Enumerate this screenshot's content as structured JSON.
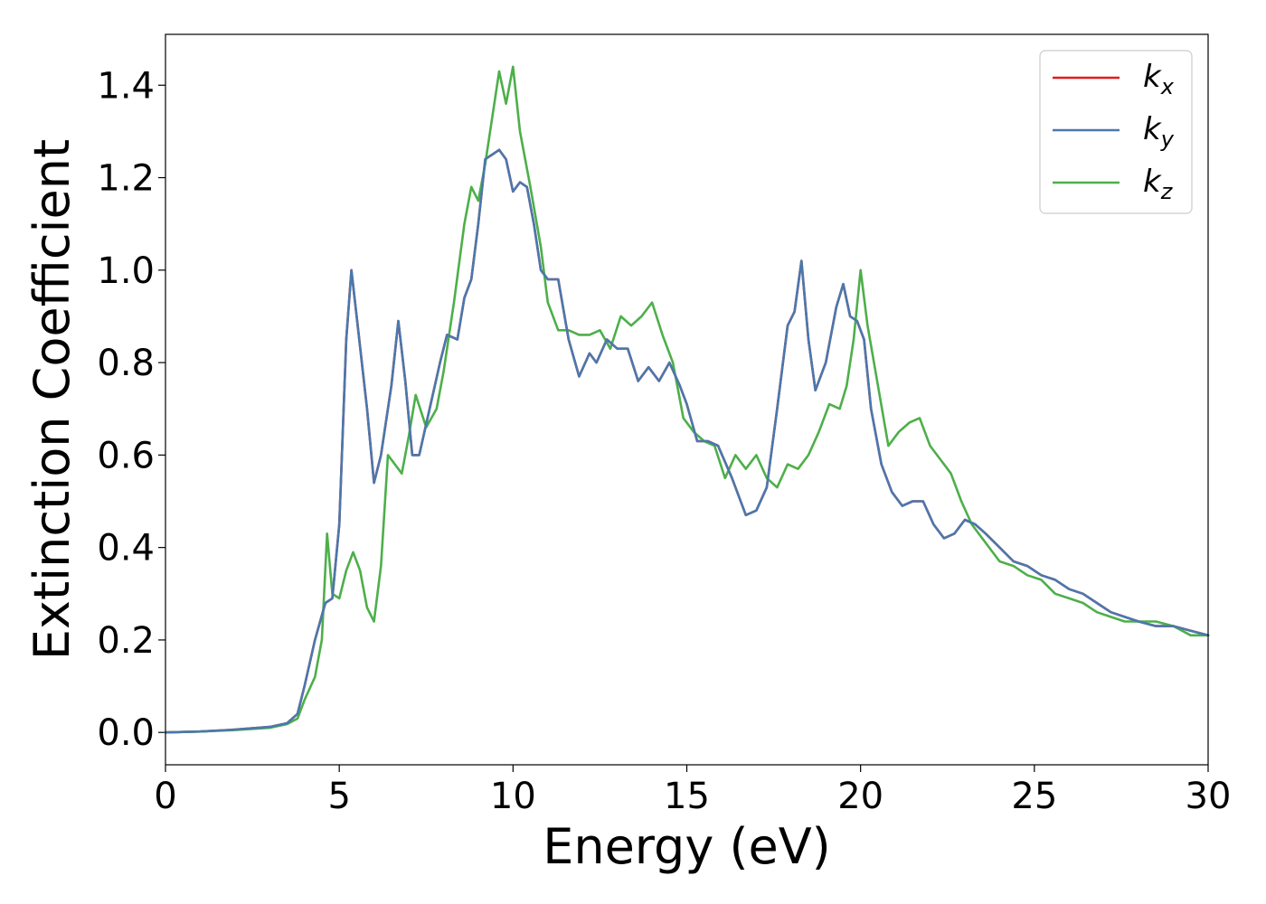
{
  "chart_data": {
    "type": "line",
    "title": "",
    "xlabel": "Energy (eV)",
    "ylabel": "Extinction Coefficient",
    "xlim": [
      0,
      30
    ],
    "ylim": [
      -0.07,
      1.51
    ],
    "xticks": [
      0,
      5,
      10,
      15,
      20,
      25,
      30
    ],
    "xtick_labels": [
      "0",
      "5",
      "10",
      "15",
      "20",
      "25",
      "30"
    ],
    "yticks": [
      0.0,
      0.2,
      0.4,
      0.6,
      0.8,
      1.0,
      1.2,
      1.4
    ],
    "ytick_labels": [
      "0.0",
      "0.2",
      "0.4",
      "0.6",
      "0.8",
      "1.0",
      "1.2",
      "1.4"
    ],
    "grid": false,
    "legend_position": "top-right",
    "series": [
      {
        "name": "k_x",
        "legend_base": "k",
        "legend_sub": "x",
        "color": "#e41a1c",
        "x": [
          0,
          1,
          2,
          3,
          3.5,
          3.8,
          4.0,
          4.3,
          4.6,
          4.8,
          5.0,
          5.2,
          5.35,
          5.5,
          5.8,
          6.0,
          6.2,
          6.5,
          6.7,
          6.9,
          7.1,
          7.3,
          7.6,
          7.9,
          8.1,
          8.4,
          8.6,
          8.8,
          9.0,
          9.2,
          9.4,
          9.6,
          9.8,
          10.0,
          10.2,
          10.4,
          10.6,
          10.8,
          11.0,
          11.3,
          11.6,
          11.9,
          12.2,
          12.4,
          12.7,
          13.0,
          13.3,
          13.6,
          13.9,
          14.2,
          14.5,
          14.8,
          15.0,
          15.3,
          15.6,
          15.9,
          16.3,
          16.7,
          17.0,
          17.3,
          17.6,
          17.9,
          18.1,
          18.3,
          18.5,
          18.7,
          19.0,
          19.3,
          19.5,
          19.7,
          19.9,
          20.1,
          20.3,
          20.6,
          20.9,
          21.2,
          21.5,
          21.8,
          22.1,
          22.4,
          22.7,
          23.0,
          23.3,
          23.6,
          24.0,
          24.4,
          24.8,
          25.2,
          25.6,
          26.0,
          26.4,
          26.8,
          27.2,
          27.6,
          28.0,
          28.5,
          29.0,
          29.5,
          30.0
        ],
        "values": [
          0.0,
          0.002,
          0.006,
          0.012,
          0.02,
          0.04,
          0.1,
          0.2,
          0.28,
          0.29,
          0.45,
          0.85,
          1.0,
          0.9,
          0.7,
          0.54,
          0.6,
          0.75,
          0.89,
          0.76,
          0.6,
          0.6,
          0.7,
          0.8,
          0.86,
          0.85,
          0.94,
          0.98,
          1.1,
          1.24,
          1.25,
          1.26,
          1.24,
          1.17,
          1.19,
          1.18,
          1.1,
          1.0,
          0.98,
          0.98,
          0.85,
          0.77,
          0.82,
          0.8,
          0.85,
          0.83,
          0.83,
          0.76,
          0.79,
          0.76,
          0.8,
          0.75,
          0.71,
          0.63,
          0.63,
          0.62,
          0.55,
          0.47,
          0.48,
          0.53,
          0.7,
          0.88,
          0.91,
          1.02,
          0.85,
          0.74,
          0.8,
          0.92,
          0.97,
          0.9,
          0.89,
          0.85,
          0.7,
          0.58,
          0.52,
          0.49,
          0.5,
          0.5,
          0.45,
          0.42,
          0.43,
          0.46,
          0.45,
          0.43,
          0.4,
          0.37,
          0.36,
          0.34,
          0.33,
          0.31,
          0.3,
          0.28,
          0.26,
          0.25,
          0.24,
          0.23,
          0.23,
          0.22,
          0.21
        ]
      },
      {
        "name": "k_y",
        "legend_base": "k",
        "legend_sub": "y",
        "color": "#4a78ad",
        "x": [
          0,
          1,
          2,
          3,
          3.5,
          3.8,
          4.0,
          4.3,
          4.6,
          4.8,
          5.0,
          5.2,
          5.35,
          5.5,
          5.8,
          6.0,
          6.2,
          6.5,
          6.7,
          6.9,
          7.1,
          7.3,
          7.6,
          7.9,
          8.1,
          8.4,
          8.6,
          8.8,
          9.0,
          9.2,
          9.4,
          9.6,
          9.8,
          10.0,
          10.2,
          10.4,
          10.6,
          10.8,
          11.0,
          11.3,
          11.6,
          11.9,
          12.2,
          12.4,
          12.7,
          13.0,
          13.3,
          13.6,
          13.9,
          14.2,
          14.5,
          14.8,
          15.0,
          15.3,
          15.6,
          15.9,
          16.3,
          16.7,
          17.0,
          17.3,
          17.6,
          17.9,
          18.1,
          18.3,
          18.5,
          18.7,
          19.0,
          19.3,
          19.5,
          19.7,
          19.9,
          20.1,
          20.3,
          20.6,
          20.9,
          21.2,
          21.5,
          21.8,
          22.1,
          22.4,
          22.7,
          23.0,
          23.3,
          23.6,
          24.0,
          24.4,
          24.8,
          25.2,
          25.6,
          26.0,
          26.4,
          26.8,
          27.2,
          27.6,
          28.0,
          28.5,
          29.0,
          29.5,
          30.0
        ],
        "values": [
          0.0,
          0.002,
          0.006,
          0.012,
          0.02,
          0.04,
          0.1,
          0.2,
          0.28,
          0.29,
          0.45,
          0.85,
          1.0,
          0.9,
          0.7,
          0.54,
          0.6,
          0.75,
          0.89,
          0.76,
          0.6,
          0.6,
          0.7,
          0.8,
          0.86,
          0.85,
          0.94,
          0.98,
          1.1,
          1.24,
          1.25,
          1.26,
          1.24,
          1.17,
          1.19,
          1.18,
          1.1,
          1.0,
          0.98,
          0.98,
          0.85,
          0.77,
          0.82,
          0.8,
          0.85,
          0.83,
          0.83,
          0.76,
          0.79,
          0.76,
          0.8,
          0.75,
          0.71,
          0.63,
          0.63,
          0.62,
          0.55,
          0.47,
          0.48,
          0.53,
          0.7,
          0.88,
          0.91,
          1.02,
          0.85,
          0.74,
          0.8,
          0.92,
          0.97,
          0.9,
          0.89,
          0.85,
          0.7,
          0.58,
          0.52,
          0.49,
          0.5,
          0.5,
          0.45,
          0.42,
          0.43,
          0.46,
          0.45,
          0.43,
          0.4,
          0.37,
          0.36,
          0.34,
          0.33,
          0.31,
          0.3,
          0.28,
          0.26,
          0.25,
          0.24,
          0.23,
          0.23,
          0.22,
          0.21
        ]
      },
      {
        "name": "k_z",
        "legend_base": "k",
        "legend_sub": "z",
        "color": "#4daf4a",
        "x": [
          0,
          1,
          2,
          3,
          3.5,
          3.8,
          4.0,
          4.3,
          4.5,
          4.65,
          4.8,
          5.0,
          5.2,
          5.4,
          5.6,
          5.8,
          6.0,
          6.2,
          6.4,
          6.6,
          6.8,
          7.0,
          7.2,
          7.5,
          7.8,
          8.0,
          8.3,
          8.6,
          8.8,
          9.0,
          9.2,
          9.4,
          9.6,
          9.8,
          10.0,
          10.2,
          10.5,
          10.8,
          11.0,
          11.3,
          11.6,
          11.9,
          12.2,
          12.5,
          12.8,
          13.1,
          13.4,
          13.7,
          14.0,
          14.3,
          14.6,
          14.9,
          15.2,
          15.5,
          15.8,
          16.1,
          16.4,
          16.7,
          17.0,
          17.3,
          17.6,
          17.9,
          18.2,
          18.5,
          18.8,
          19.1,
          19.4,
          19.6,
          19.8,
          20.0,
          20.2,
          20.5,
          20.8,
          21.1,
          21.4,
          21.7,
          22.0,
          22.3,
          22.6,
          22.9,
          23.2,
          23.6,
          24.0,
          24.4,
          24.8,
          25.2,
          25.6,
          26.0,
          26.4,
          26.8,
          27.2,
          27.6,
          28.0,
          28.5,
          29.0,
          29.5,
          30.0
        ],
        "values": [
          0.0,
          0.002,
          0.005,
          0.01,
          0.018,
          0.03,
          0.07,
          0.12,
          0.2,
          0.43,
          0.3,
          0.29,
          0.35,
          0.39,
          0.35,
          0.27,
          0.24,
          0.36,
          0.6,
          0.58,
          0.56,
          0.64,
          0.73,
          0.66,
          0.7,
          0.78,
          0.93,
          1.1,
          1.18,
          1.15,
          1.23,
          1.33,
          1.43,
          1.36,
          1.44,
          1.3,
          1.18,
          1.05,
          0.93,
          0.87,
          0.87,
          0.86,
          0.86,
          0.87,
          0.83,
          0.9,
          0.88,
          0.9,
          0.93,
          0.86,
          0.8,
          0.68,
          0.65,
          0.63,
          0.62,
          0.55,
          0.6,
          0.57,
          0.6,
          0.55,
          0.53,
          0.58,
          0.57,
          0.6,
          0.65,
          0.71,
          0.7,
          0.75,
          0.85,
          1.0,
          0.88,
          0.75,
          0.62,
          0.65,
          0.67,
          0.68,
          0.62,
          0.59,
          0.56,
          0.5,
          0.45,
          0.41,
          0.37,
          0.36,
          0.34,
          0.33,
          0.3,
          0.29,
          0.28,
          0.26,
          0.25,
          0.24,
          0.24,
          0.24,
          0.23,
          0.21,
          0.21
        ]
      }
    ]
  }
}
